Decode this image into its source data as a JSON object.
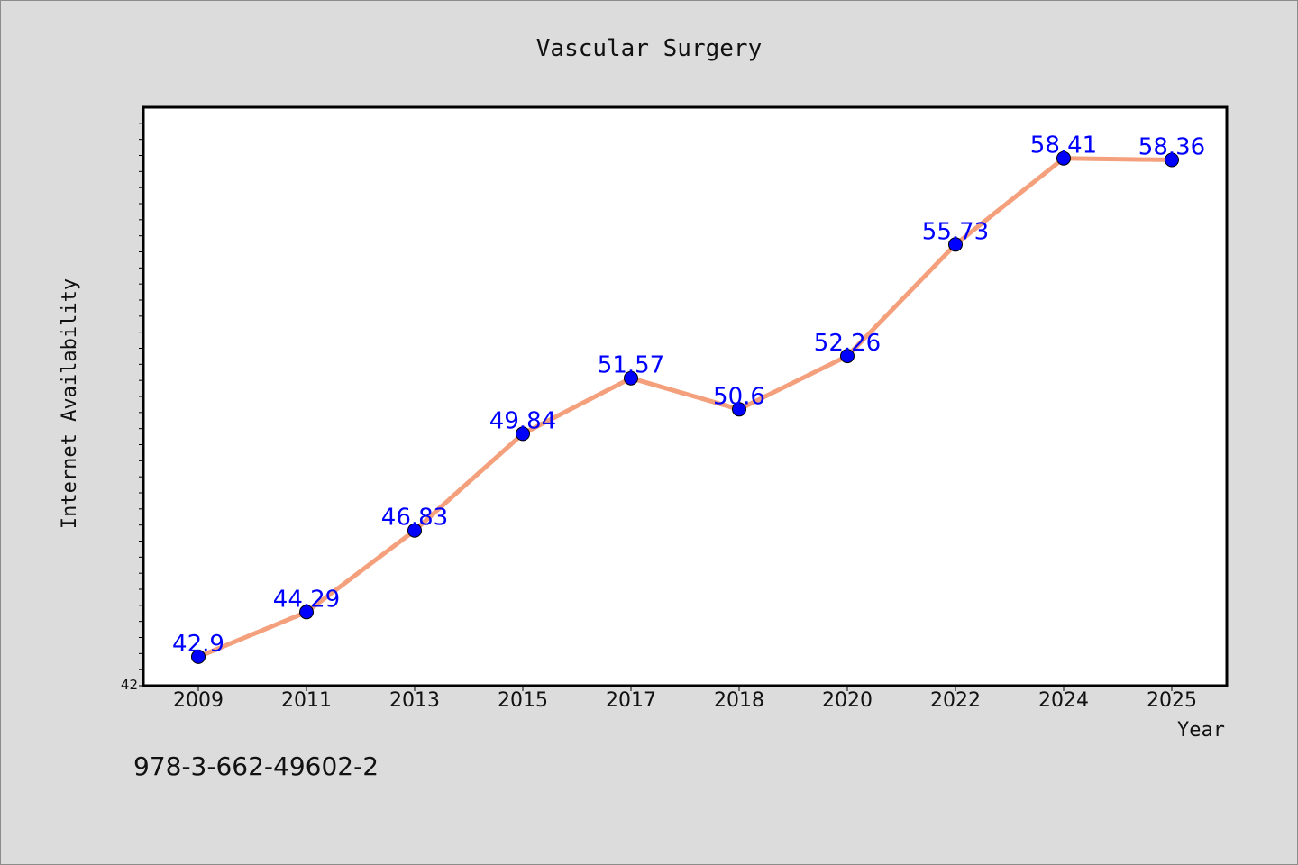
{
  "chart_data": {
    "type": "line",
    "title": "Vascular Surgery",
    "xlabel": "Year",
    "ylabel": "Internet Availability",
    "categories": [
      "2009",
      "2011",
      "2013",
      "2015",
      "2017",
      "2018",
      "2020",
      "2022",
      "2024",
      "2025"
    ],
    "series": [
      {
        "values": [
          42.9,
          44.29,
          46.83,
          49.84,
          51.57,
          50.6,
          52.26,
          55.73,
          58.41,
          58.36
        ]
      }
    ],
    "data_labels": [
      "42.9",
      "44.29",
      "46.83",
      "49.84",
      "51.57",
      "50.6",
      "52.26",
      "55.73",
      "58.41",
      "58.36"
    ],
    "ylim": [
      42,
      60
    ],
    "y_tick_labels": [
      "42"
    ],
    "line_color": "#f4a07c",
    "marker_color": "#0000ff",
    "label_color": "#0000ff",
    "grid": false
  },
  "footnote": "978-3-662-49602-2"
}
